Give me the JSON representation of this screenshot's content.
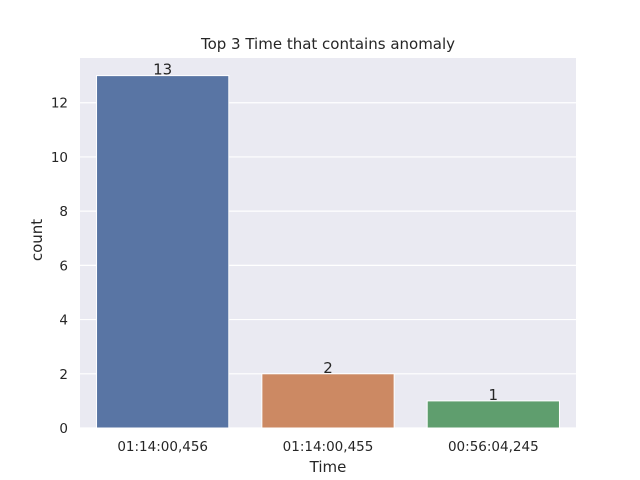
{
  "chart_data": {
    "type": "bar",
    "title": "Top 3 Time that contains anomaly",
    "xlabel": "Time",
    "ylabel": "count",
    "categories": [
      "01:14:00,456",
      "01:14:00,455",
      "00:56:04,245"
    ],
    "values": [
      13,
      2,
      1
    ],
    "data_labels": [
      "13",
      "2",
      "1"
    ],
    "colors": [
      "#5975a4",
      "#cc8963",
      "#5f9e6e"
    ],
    "ylim": [
      0,
      13.65
    ],
    "yticks": [
      0,
      2,
      4,
      6,
      8,
      10,
      12
    ],
    "ytick_labels": [
      "0",
      "2",
      "4",
      "6",
      "8",
      "10",
      "12"
    ],
    "grid": true,
    "background": "#eaeaf2",
    "legend": "none"
  }
}
